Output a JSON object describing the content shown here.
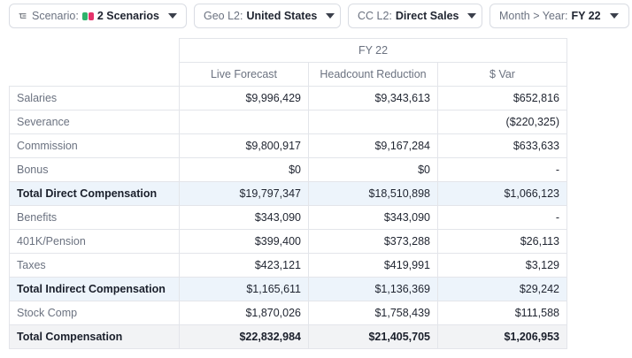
{
  "filters": {
    "scenario": {
      "label": "Scenario:",
      "value": "2 Scenarios",
      "swatch_colors": [
        "#2fb36b",
        "#e5336b"
      ]
    },
    "geo": {
      "label": "Geo L2:",
      "value": "United States"
    },
    "cc": {
      "label": "CC L2:",
      "value": "Direct Sales"
    },
    "month": {
      "label": "Month > Year:",
      "value": "FY 22"
    }
  },
  "table": {
    "period": "FY 22",
    "columns": [
      "Live Forecast",
      "Headcount Reduction",
      "$ Var"
    ],
    "rows": [
      {
        "label": "Salaries",
        "values": [
          "$9,996,429",
          "$9,343,613",
          "$652,816"
        ]
      },
      {
        "label": "Severance",
        "values": [
          "",
          "",
          "($220,325)"
        ]
      },
      {
        "label": "Commission",
        "values": [
          "$9,800,917",
          "$9,167,284",
          "$633,633"
        ]
      },
      {
        "label": "Bonus",
        "values": [
          "$0",
          "$0",
          "-"
        ]
      },
      {
        "label": "Total Direct Compensation",
        "values": [
          "$19,797,347",
          "$18,510,898",
          "$1,066,123"
        ]
      },
      {
        "label": "Benefits",
        "values": [
          "$343,090",
          "$343,090",
          "-"
        ]
      },
      {
        "label": "401K/Pension",
        "values": [
          "$399,400",
          "$373,288",
          "$26,113"
        ]
      },
      {
        "label": "Taxes",
        "values": [
          "$423,121",
          "$419,991",
          "$3,129"
        ]
      },
      {
        "label": "Total Indirect Compensation",
        "values": [
          "$1,165,611",
          "$1,136,369",
          "$29,242"
        ]
      },
      {
        "label": "Stock Comp",
        "values": [
          "$1,870,026",
          "$1,758,439",
          "$111,588"
        ]
      },
      {
        "label": "Total Compensation",
        "values": [
          "$22,832,984",
          "$21,405,705",
          "$1,206,953"
        ]
      }
    ]
  },
  "colors": {
    "subtotal_row_bg": "#edf4fb",
    "total_row_bg": "#f2f3f5"
  }
}
